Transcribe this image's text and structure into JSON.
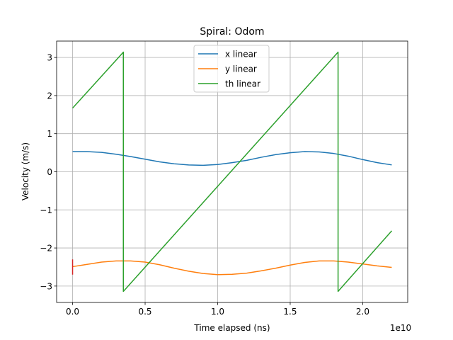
{
  "chart_data": {
    "type": "line",
    "title": "Spiral: Odom",
    "xlabel": "Time elapsed (ns)",
    "ylabel": "Velocity (m/s)",
    "x_offset_label": "1e10",
    "xlim": [
      -0.11,
      2.31
    ],
    "ylim": [
      -3.43,
      3.43
    ],
    "x_ticks": [
      0.0,
      0.5,
      1.0,
      1.5,
      2.0
    ],
    "x_tick_labels": [
      "0.0",
      "0.5",
      "1.0",
      "1.5",
      "2.0"
    ],
    "y_ticks": [
      3,
      2,
      1,
      0,
      -1,
      -2,
      -3
    ],
    "y_tick_labels": [
      "3",
      "2",
      "1",
      "0",
      "−1",
      "−2",
      "−3"
    ],
    "grid": true,
    "legend_position": "top-center",
    "series": [
      {
        "name": "x linear",
        "color": "#1f77b4",
        "points": [
          [
            0.0,
            0.53
          ],
          [
            0.1,
            0.53
          ],
          [
            0.2,
            0.51
          ],
          [
            0.3,
            0.46
          ],
          [
            0.4,
            0.4
          ],
          [
            0.5,
            0.33
          ],
          [
            0.6,
            0.26
          ],
          [
            0.7,
            0.21
          ],
          [
            0.8,
            0.18
          ],
          [
            0.9,
            0.17
          ],
          [
            1.0,
            0.19
          ],
          [
            1.1,
            0.24
          ],
          [
            1.2,
            0.3
          ],
          [
            1.3,
            0.38
          ],
          [
            1.4,
            0.45
          ],
          [
            1.5,
            0.5
          ],
          [
            1.6,
            0.53
          ],
          [
            1.7,
            0.52
          ],
          [
            1.8,
            0.48
          ],
          [
            1.9,
            0.41
          ],
          [
            2.0,
            0.32
          ],
          [
            2.1,
            0.24
          ],
          [
            2.2,
            0.18
          ]
        ]
      },
      {
        "name": "y linear",
        "color": "#ff7f0e",
        "points": [
          [
            0.0,
            -2.49
          ],
          [
            0.1,
            -2.43
          ],
          [
            0.2,
            -2.37
          ],
          [
            0.3,
            -2.34
          ],
          [
            0.35,
            -2.34
          ],
          [
            0.4,
            -2.34
          ],
          [
            0.5,
            -2.37
          ],
          [
            0.6,
            -2.44
          ],
          [
            0.7,
            -2.53
          ],
          [
            0.8,
            -2.61
          ],
          [
            0.9,
            -2.67
          ],
          [
            1.0,
            -2.7
          ],
          [
            1.1,
            -2.69
          ],
          [
            1.2,
            -2.66
          ],
          [
            1.3,
            -2.6
          ],
          [
            1.4,
            -2.53
          ],
          [
            1.5,
            -2.45
          ],
          [
            1.6,
            -2.38
          ],
          [
            1.7,
            -2.34
          ],
          [
            1.8,
            -2.34
          ],
          [
            1.9,
            -2.37
          ],
          [
            2.0,
            -2.42
          ],
          [
            2.1,
            -2.47
          ],
          [
            2.2,
            -2.51
          ]
        ]
      },
      {
        "name": "th linear",
        "color": "#2ca02c",
        "points": [
          [
            0.0,
            1.67
          ],
          [
            0.35,
            3.14
          ],
          [
            0.35,
            -3.14
          ],
          [
            1.83,
            3.14
          ],
          [
            1.83,
            -3.14
          ],
          [
            2.2,
            -1.55
          ]
        ]
      }
    ],
    "annotations": [
      {
        "color": "#d62728",
        "x": 0.0,
        "y_min": -2.7,
        "y_max": -2.3
      }
    ]
  }
}
